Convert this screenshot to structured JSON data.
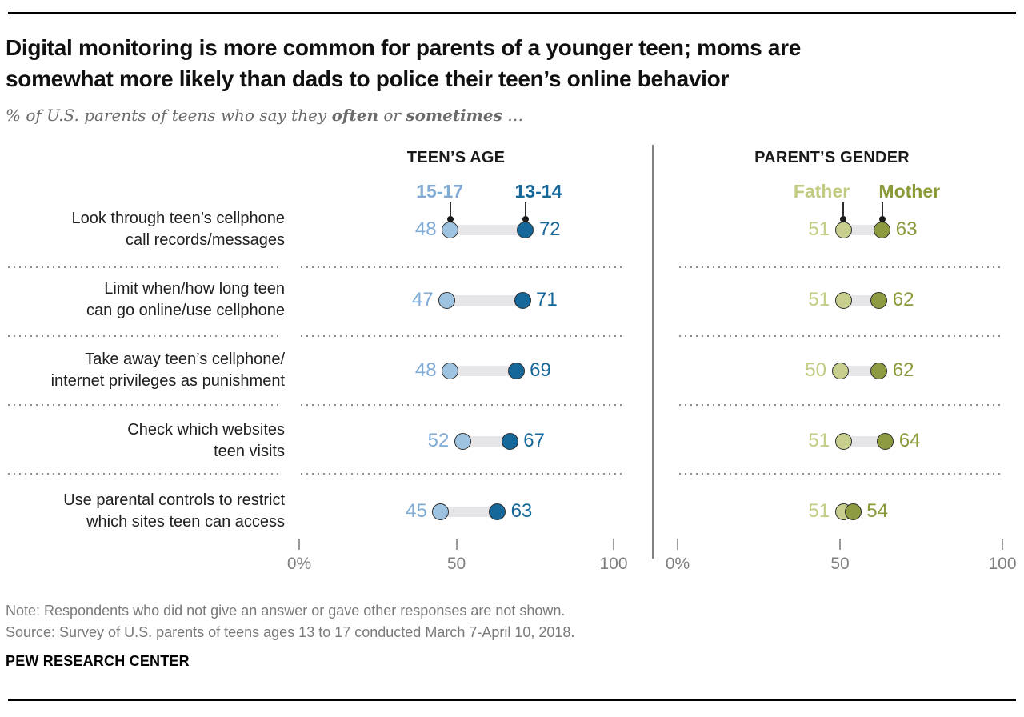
{
  "header": {
    "title": "Digital monitoring is more common for parents of a younger teen; moms are\nsomewhat more likely than dads to police their teen’s online behavior",
    "subtitle": {
      "prefix": "% of U.S. parents of teens who say they ",
      "emph1": "often",
      "connector": " or ",
      "emph2": "sometimes",
      "suffix": " …"
    }
  },
  "chart_data": {
    "type": "scatter",
    "subtype": "dumbbell-dot-plot",
    "xlim": [
      0,
      100
    ],
    "grid": "dotted-row-separators",
    "categories": [
      "Look through teen’s cellphone\ncall records/messages",
      "Limit when/how long teen\ncan go online/use cellphone",
      "Take away teen’s cellphone/\ninternet privileges as punishment",
      "Check which websites\nteen visits",
      "Use parental controls to restrict\nwhich sites teen can access"
    ],
    "panels": [
      {
        "title": "TEEN’S AGE",
        "series": [
          {
            "name": "15-17",
            "dot_color": "#9dc3e1",
            "text_color": "#7fabd6",
            "values": [
              48,
              47,
              48,
              52,
              45
            ]
          },
          {
            "name": "13-14",
            "dot_color": "#16679a",
            "text_color": "#16679a",
            "values": [
              72,
              71,
              69,
              67,
              63
            ]
          }
        ],
        "axis_ticks": [
          {
            "value": 0,
            "label": "0%"
          },
          {
            "value": 50,
            "label": "50"
          },
          {
            "value": 100,
            "label": "100"
          }
        ]
      },
      {
        "title": "PARENT’S GENDER",
        "series": [
          {
            "name": "Father",
            "dot_color": "#c8cf8e",
            "text_color": "#c3cb82",
            "values": [
              51,
              51,
              50,
              51,
              51
            ]
          },
          {
            "name": "Mother",
            "dot_color": "#8d9a40",
            "text_color": "#8a9a39",
            "values": [
              63,
              62,
              62,
              64,
              54
            ]
          }
        ],
        "axis_ticks": [
          {
            "value": 0,
            "label": "0%"
          },
          {
            "value": 50,
            "label": "50"
          },
          {
            "value": 100,
            "label": "100"
          }
        ]
      }
    ],
    "connector_color": "#e6e6e8",
    "legend_position": "above-first-row"
  },
  "footer": {
    "note": "Note: Respondents who did not give an answer or gave other responses are not shown.",
    "source": "Source: Survey of U.S. parents of teens ages 13 to 17 conducted March 7-April 10, 2018.",
    "brand": "PEW RESEARCH CENTER"
  }
}
